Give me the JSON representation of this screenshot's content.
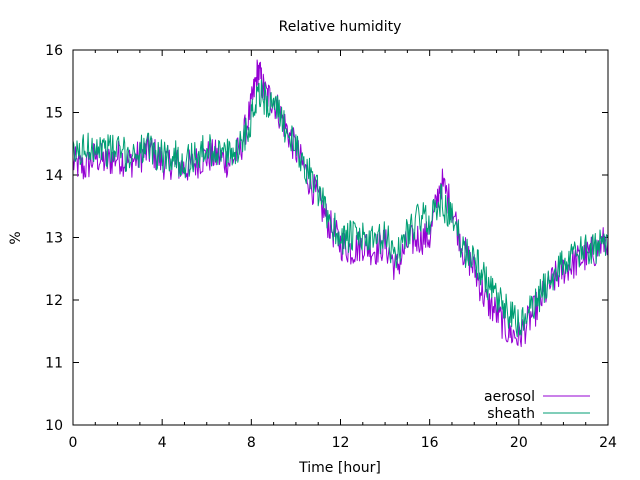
{
  "chart_data": {
    "type": "line",
    "title": "Relative humidity",
    "xlabel": "Time [hour]",
    "ylabel": "%",
    "xlim": [
      0,
      24
    ],
    "ylim": [
      10,
      16
    ],
    "xticks": [
      "0",
      "4",
      "8",
      "12",
      "16",
      "20",
      "24"
    ],
    "yticks": [
      "10",
      "11",
      "12",
      "13",
      "14",
      "15",
      "16"
    ],
    "grid": false,
    "legend_position": "bottom-right",
    "x": [
      0,
      0.5,
      1,
      1.5,
      2,
      2.5,
      3,
      3.5,
      4,
      4.5,
      5,
      5.5,
      6,
      6.5,
      7,
      7.5,
      8,
      8.3,
      8.6,
      9,
      9.5,
      10,
      10.5,
      11,
      11.5,
      12,
      12.5,
      13,
      13.5,
      14,
      14.5,
      15,
      15.5,
      16,
      16.5,
      17,
      17.5,
      18,
      18.5,
      19,
      19.5,
      20,
      20.5,
      21,
      21.5,
      22,
      22.5,
      23,
      23.5,
      24
    ],
    "series": [
      {
        "name": "aerosol",
        "color": "#9400d3",
        "values": [
          14.2,
          14.1,
          14.3,
          14.2,
          14.3,
          14.2,
          14.3,
          14.4,
          14.2,
          14.2,
          14.1,
          14.2,
          14.3,
          14.3,
          14.2,
          14.4,
          15.1,
          15.7,
          15.3,
          15.2,
          14.8,
          14.4,
          14.0,
          13.6,
          13.2,
          12.9,
          12.8,
          12.9,
          12.8,
          12.9,
          12.5,
          12.9,
          13.0,
          13.0,
          13.9,
          13.5,
          12.8,
          12.5,
          12.0,
          11.8,
          11.5,
          11.4,
          11.7,
          12.0,
          12.3,
          12.5,
          12.6,
          12.7,
          12.8,
          13.0
        ]
      },
      {
        "name": "sheath",
        "color": "#009e73",
        "values": [
          14.3,
          14.4,
          14.5,
          14.4,
          14.4,
          14.3,
          14.4,
          14.4,
          14.3,
          14.3,
          14.2,
          14.3,
          14.4,
          14.4,
          14.3,
          14.5,
          14.9,
          15.4,
          15.2,
          15.1,
          14.8,
          14.4,
          14.1,
          13.7,
          13.3,
          13.0,
          13.0,
          13.0,
          12.9,
          13.0,
          12.7,
          13.1,
          13.3,
          13.3,
          13.6,
          13.3,
          12.8,
          12.7,
          12.3,
          12.0,
          11.8,
          11.6,
          11.8,
          12.1,
          12.4,
          12.6,
          12.7,
          12.8,
          12.8,
          13.0
        ]
      }
    ]
  }
}
